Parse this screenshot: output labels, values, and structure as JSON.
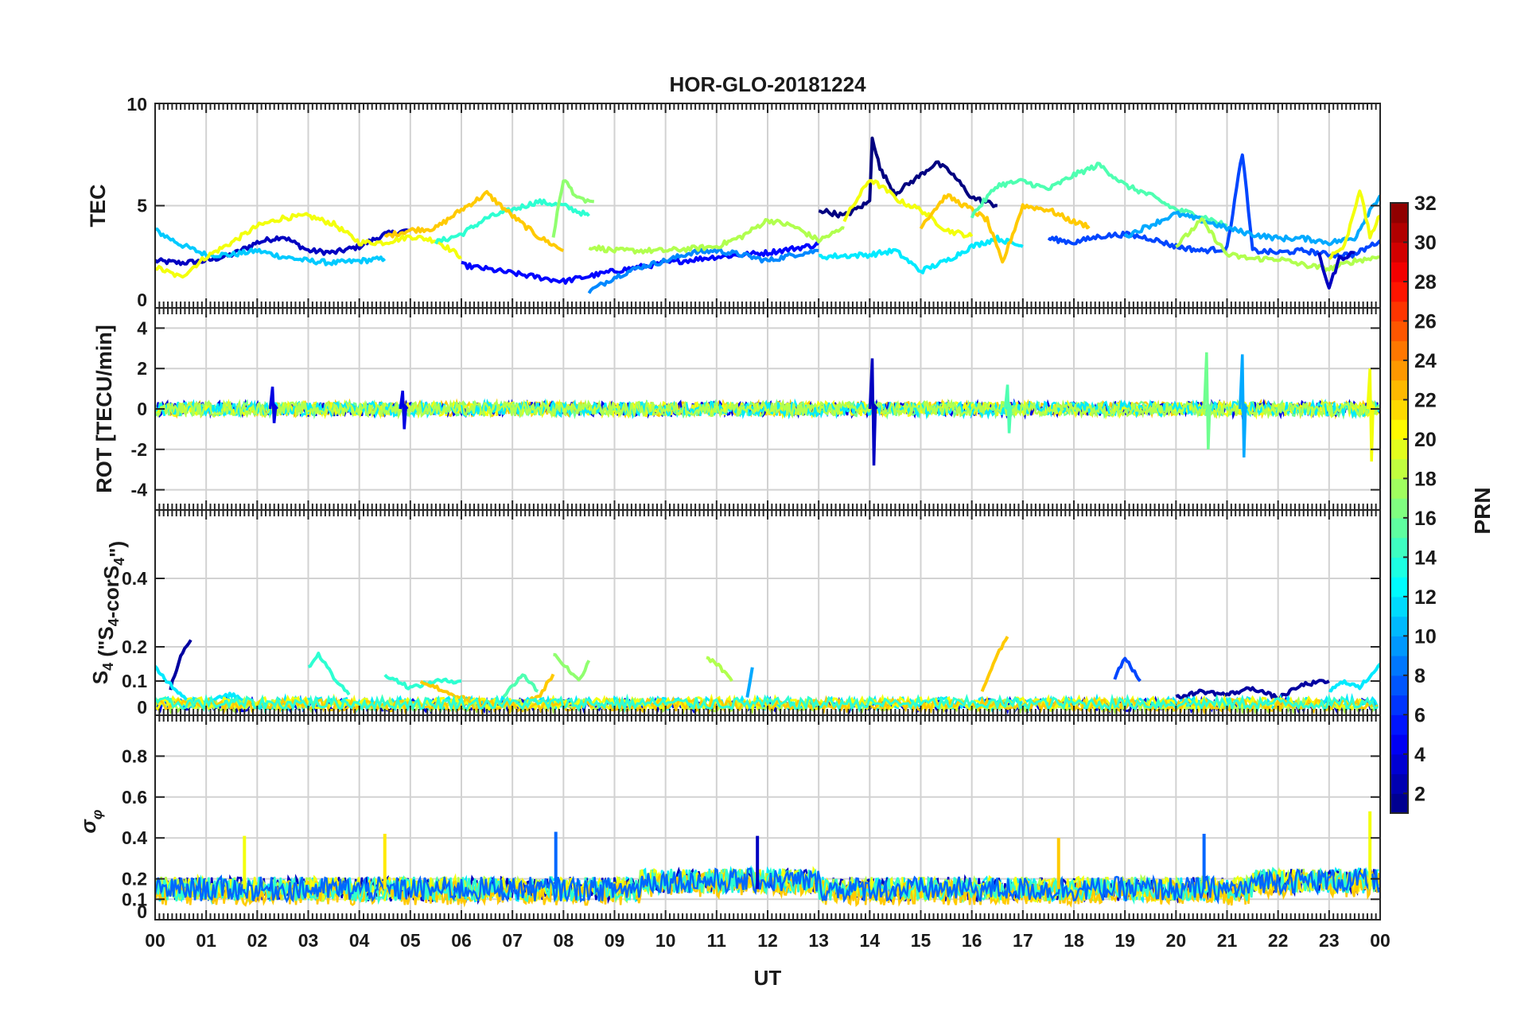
{
  "chart_data": {
    "title": "HOR-GLO-20181224",
    "type": "line",
    "xlabel": "UT",
    "x_tick_labels": [
      "00",
      "01",
      "02",
      "03",
      "04",
      "05",
      "06",
      "07",
      "08",
      "09",
      "10",
      "11",
      "12",
      "13",
      "14",
      "15",
      "16",
      "17",
      "18",
      "19",
      "20",
      "21",
      "22",
      "23",
      "00"
    ],
    "xlim": [
      0,
      24
    ],
    "grid": true,
    "colorbar": {
      "label": "PRN",
      "range": [
        1,
        32
      ],
      "tick_labels": [
        "2",
        "4",
        "6",
        "8",
        "10",
        "12",
        "14",
        "16",
        "18",
        "20",
        "22",
        "24",
        "26",
        "28",
        "30",
        "32"
      ],
      "colormap": "jet"
    },
    "panels": [
      {
        "id": "tec",
        "ylabel": "TEC",
        "ylim": [
          0,
          10
        ],
        "y_tick_labels": [
          "0",
          "5",
          "10"
        ],
        "y_ticks": [
          0,
          5,
          10
        ],
        "series": [
          {
            "prn": 3,
            "x": [
              0,
              0.5,
              1,
              1.5,
              2,
              2.5,
              3,
              3.5,
              4,
              4.5,
              5
            ],
            "y": [
              2.3,
              2.2,
              2.3,
              2.6,
              3.2,
              3.5,
              2.8,
              2.7,
              3.0,
              3.6,
              3.8
            ]
          },
          {
            "prn": 11,
            "x": [
              0,
              0.5,
              1,
              1.5,
              2,
              2.5,
              3,
              3.5,
              4,
              4.5
            ],
            "y": [
              3.8,
              3.1,
              2.6,
              2.6,
              2.8,
              2.5,
              2.3,
              2.2,
              2.3,
              2.4
            ]
          },
          {
            "prn": 20,
            "x": [
              0,
              0.5,
              1,
              1.5,
              2,
              2.5,
              3,
              3.5,
              4,
              4.5,
              5,
              5.5,
              6
            ],
            "y": [
              2.0,
              1.5,
              2.5,
              3.2,
              4.0,
              4.4,
              4.5,
              4.1,
              3.2,
              3.2,
              3.5,
              3.3,
              2.5
            ]
          },
          {
            "prn": 14,
            "x": [
              5.5,
              6,
              6.5,
              7,
              7.5,
              8,
              8.5
            ],
            "y": [
              3.2,
              3.6,
              4.4,
              4.8,
              5.2,
              5.0,
              4.5
            ]
          },
          {
            "prn": 22,
            "x": [
              4.5,
              5,
              5.5,
              6,
              6.5,
              7,
              7.5,
              8
            ],
            "y": [
              3.5,
              3.8,
              3.9,
              4.8,
              5.6,
              4.5,
              3.5,
              2.8
            ]
          },
          {
            "prn": 17,
            "x": [
              7.8,
              8,
              8.3,
              8.6
            ],
            "y": [
              3.5,
              6.3,
              5.3,
              5.2
            ]
          },
          {
            "prn": 5,
            "x": [
              6,
              7,
              8,
              9,
              10,
              11,
              12,
              13
            ],
            "y": [
              2.1,
              1.7,
              1.3,
              1.8,
              2.2,
              2.5,
              2.7,
              3.1
            ]
          },
          {
            "prn": 9,
            "x": [
              8.5,
              9,
              9.5,
              10,
              10.5,
              11,
              11.5,
              12,
              12.5,
              13
            ],
            "y": [
              0.8,
              1.5,
              2.0,
              2.3,
              2.7,
              2.8,
              2.6,
              2.3,
              2.6,
              2.8
            ]
          },
          {
            "prn": 18,
            "x": [
              8.5,
              9,
              10,
              11,
              11.5,
              12,
              12.5,
              13,
              13.5
            ],
            "y": [
              3.0,
              2.8,
              2.8,
              3.0,
              3.5,
              4.3,
              4.0,
              3.3,
              3.9
            ]
          },
          {
            "prn": 1,
            "x": [
              13,
              13.5,
              14,
              14.05,
              14.2,
              14.5,
              15,
              15.3,
              15.6,
              16,
              16.5
            ],
            "y": [
              4.8,
              4.5,
              5.2,
              8.4,
              6.8,
              5.6,
              6.5,
              7.1,
              6.6,
              5.4,
              5.0
            ]
          },
          {
            "prn": 20,
            "x": [
              13.5,
              14,
              14.3,
              14.6,
              15,
              15.5,
              16
            ],
            "y": [
              4.3,
              6.3,
              5.8,
              5.2,
              4.8,
              3.8,
              3.5
            ]
          },
          {
            "prn": 12,
            "x": [
              13,
              14,
              14.5,
              15,
              15.5,
              16,
              16.5,
              17
            ],
            "y": [
              2.5,
              2.6,
              2.8,
              1.8,
              2.3,
              3.0,
              3.4,
              3.0
            ]
          },
          {
            "prn": 22,
            "x": [
              15,
              15.5,
              16,
              16.3,
              16.6,
              17,
              17.5,
              18,
              18.3
            ],
            "y": [
              4.0,
              5.5,
              4.8,
              4.3,
              2.2,
              5.0,
              4.8,
              4.2,
              4.0
            ]
          },
          {
            "prn": 15,
            "x": [
              16,
              16.5,
              17,
              17.5,
              18,
              18.5,
              19,
              19.5,
              20,
              20.5,
              21
            ],
            "y": [
              4.5,
              6.0,
              6.2,
              5.8,
              6.5,
              7.0,
              6.0,
              5.5,
              4.8,
              4.5,
              4.0
            ]
          },
          {
            "prn": 7,
            "x": [
              17.5,
              18,
              18.5,
              19,
              19.5,
              20,
              20.5,
              21,
              21.3,
              21.5,
              22,
              22.5,
              23,
              23.5,
              24
            ],
            "y": [
              3.4,
              3.2,
              3.5,
              3.6,
              3.4,
              3.0,
              2.8,
              2.9,
              7.6,
              2.8,
              2.7,
              2.8,
              2.6,
              2.6,
              3.3
            ]
          },
          {
            "prn": 10,
            "x": [
              19,
              20,
              20.5,
              21,
              21.5,
              22,
              22.5,
              23,
              23.5,
              23.8,
              24
            ],
            "y": [
              3.5,
              4.6,
              4.3,
              3.9,
              3.6,
              3.4,
              3.4,
              3.2,
              3.4,
              4.8,
              5.5
            ]
          },
          {
            "prn": 18,
            "x": [
              20,
              20.5,
              21,
              21.5,
              22,
              22.5,
              23,
              23.5,
              24
            ],
            "y": [
              3.0,
              4.3,
              2.6,
              2.4,
              2.4,
              2.1,
              1.9,
              2.3,
              2.5
            ]
          },
          {
            "prn": 20,
            "x": [
              23,
              23.3,
              23.6,
              23.8,
              24
            ],
            "y": [
              2.5,
              3.0,
              5.8,
              3.5,
              4.5
            ]
          },
          {
            "prn": 3,
            "x": [
              22.8,
              23,
              23.2,
              23.5
            ],
            "y": [
              2.6,
              1.0,
              2.4,
              2.7
            ]
          }
        ]
      },
      {
        "id": "rot",
        "ylabel": "ROT [TECU/min]",
        "ylim": [
          -5,
          5
        ],
        "y_tick_labels": [
          "-4",
          "-2",
          "0",
          "2",
          "4"
        ],
        "y_ticks": [
          -4,
          -2,
          0,
          2,
          4
        ],
        "spikes": [
          {
            "prn": 4,
            "x": 2.3,
            "low": -0.7,
            "high": 1.1
          },
          {
            "prn": 4,
            "x": 4.85,
            "low": -1.0,
            "high": 0.9
          },
          {
            "prn": 3,
            "x": 14.05,
            "low": -2.8,
            "high": 2.5
          },
          {
            "prn": 15,
            "x": 16.7,
            "low": -1.2,
            "high": 1.2
          },
          {
            "prn": 16,
            "x": 20.6,
            "low": -2.0,
            "high": 2.8
          },
          {
            "prn": 10,
            "x": 21.3,
            "low": -2.4,
            "high": 2.7
          },
          {
            "prn": 20,
            "x": 23.8,
            "low": -2.6,
            "high": 2.0
          }
        ]
      },
      {
        "id": "s4",
        "ylabel": "S4 (\"S4-corS4\")",
        "ylim": [
          0,
          0.6
        ],
        "y_tick_labels": [
          "0",
          "0.1",
          "0.2",
          "0.4"
        ],
        "y_ticks": [
          0,
          0.1,
          0.2,
          0.4
        ],
        "series": [
          {
            "prn": 2,
            "x": [
              0.3,
              0.5,
              0.7
            ],
            "y": [
              0.08,
              0.17,
              0.22
            ]
          },
          {
            "prn": 12,
            "x": [
              0,
              0.3,
              0.6,
              1.0,
              1.5,
              2.0,
              2.5
            ],
            "y": [
              0.14,
              0.09,
              0.05,
              0.04,
              0.06,
              0.03,
              0.02
            ]
          },
          {
            "prn": 14,
            "x": [
              3.0,
              3.2,
              3.5,
              3.8
            ],
            "y": [
              0.14,
              0.18,
              0.11,
              0.06
            ]
          },
          {
            "prn": 14,
            "x": [
              4.5,
              5.0,
              5.5,
              6.0
            ],
            "y": [
              0.12,
              0.08,
              0.1,
              0.1
            ]
          },
          {
            "prn": 15,
            "x": [
              6.8,
              7.2,
              7.5
            ],
            "y": [
              0.05,
              0.12,
              0.07
            ]
          },
          {
            "prn": 17,
            "x": [
              7.8,
              8.0,
              8.3,
              8.5
            ],
            "y": [
              0.18,
              0.15,
              0.1,
              0.16
            ]
          },
          {
            "prn": 22,
            "x": [
              5.2,
              6.0,
              6.8,
              7.5,
              7.8
            ],
            "y": [
              0.1,
              0.05,
              0.03,
              0.05,
              0.12
            ]
          },
          {
            "prn": 18,
            "x": [
              10.8,
              11.0,
              11.3
            ],
            "y": [
              0.17,
              0.15,
              0.1
            ]
          },
          {
            "prn": 10,
            "x": [
              11.6,
              11.7
            ],
            "y": [
              0.05,
              0.14
            ]
          },
          {
            "prn": 22,
            "x": [
              16.2,
              16.5,
              16.7
            ],
            "y": [
              0.07,
              0.18,
              0.23
            ]
          },
          {
            "prn": 7,
            "x": [
              18.8,
              19.0,
              19.3
            ],
            "y": [
              0.11,
              0.17,
              0.1
            ]
          },
          {
            "prn": 2,
            "x": [
              20.0,
              20.5,
              21.0,
              21.5,
              22.0,
              22.5,
              23.0
            ],
            "y": [
              0.05,
              0.07,
              0.06,
              0.08,
              0.05,
              0.09,
              0.1
            ]
          },
          {
            "prn": 12,
            "x": [
              23.0,
              23.3,
              23.6,
              24
            ],
            "y": [
              0.07,
              0.1,
              0.08,
              0.15
            ]
          }
        ]
      },
      {
        "id": "sigma",
        "ylabel": "σφ",
        "ylim": [
          0,
          1
        ],
        "y_tick_labels": [
          "0",
          "0.1",
          "0.2",
          "0.4",
          "0.6",
          "0.8"
        ],
        "y_ticks": [
          0,
          0.1,
          0.2,
          0.4,
          0.6,
          0.8
        ],
        "spikes": [
          {
            "prn": 20,
            "x": 1.75,
            "high": 0.41
          },
          {
            "prn": 21,
            "x": 4.5,
            "high": 0.42
          },
          {
            "prn": 8,
            "x": 7.85,
            "high": 0.43
          },
          {
            "prn": 3,
            "x": 11.8,
            "high": 0.41
          },
          {
            "prn": 22,
            "x": 17.7,
            "high": 0.4
          },
          {
            "prn": 8,
            "x": 20.55,
            "high": 0.42
          },
          {
            "prn": 20,
            "x": 23.8,
            "high": 0.53
          }
        ]
      }
    ]
  }
}
